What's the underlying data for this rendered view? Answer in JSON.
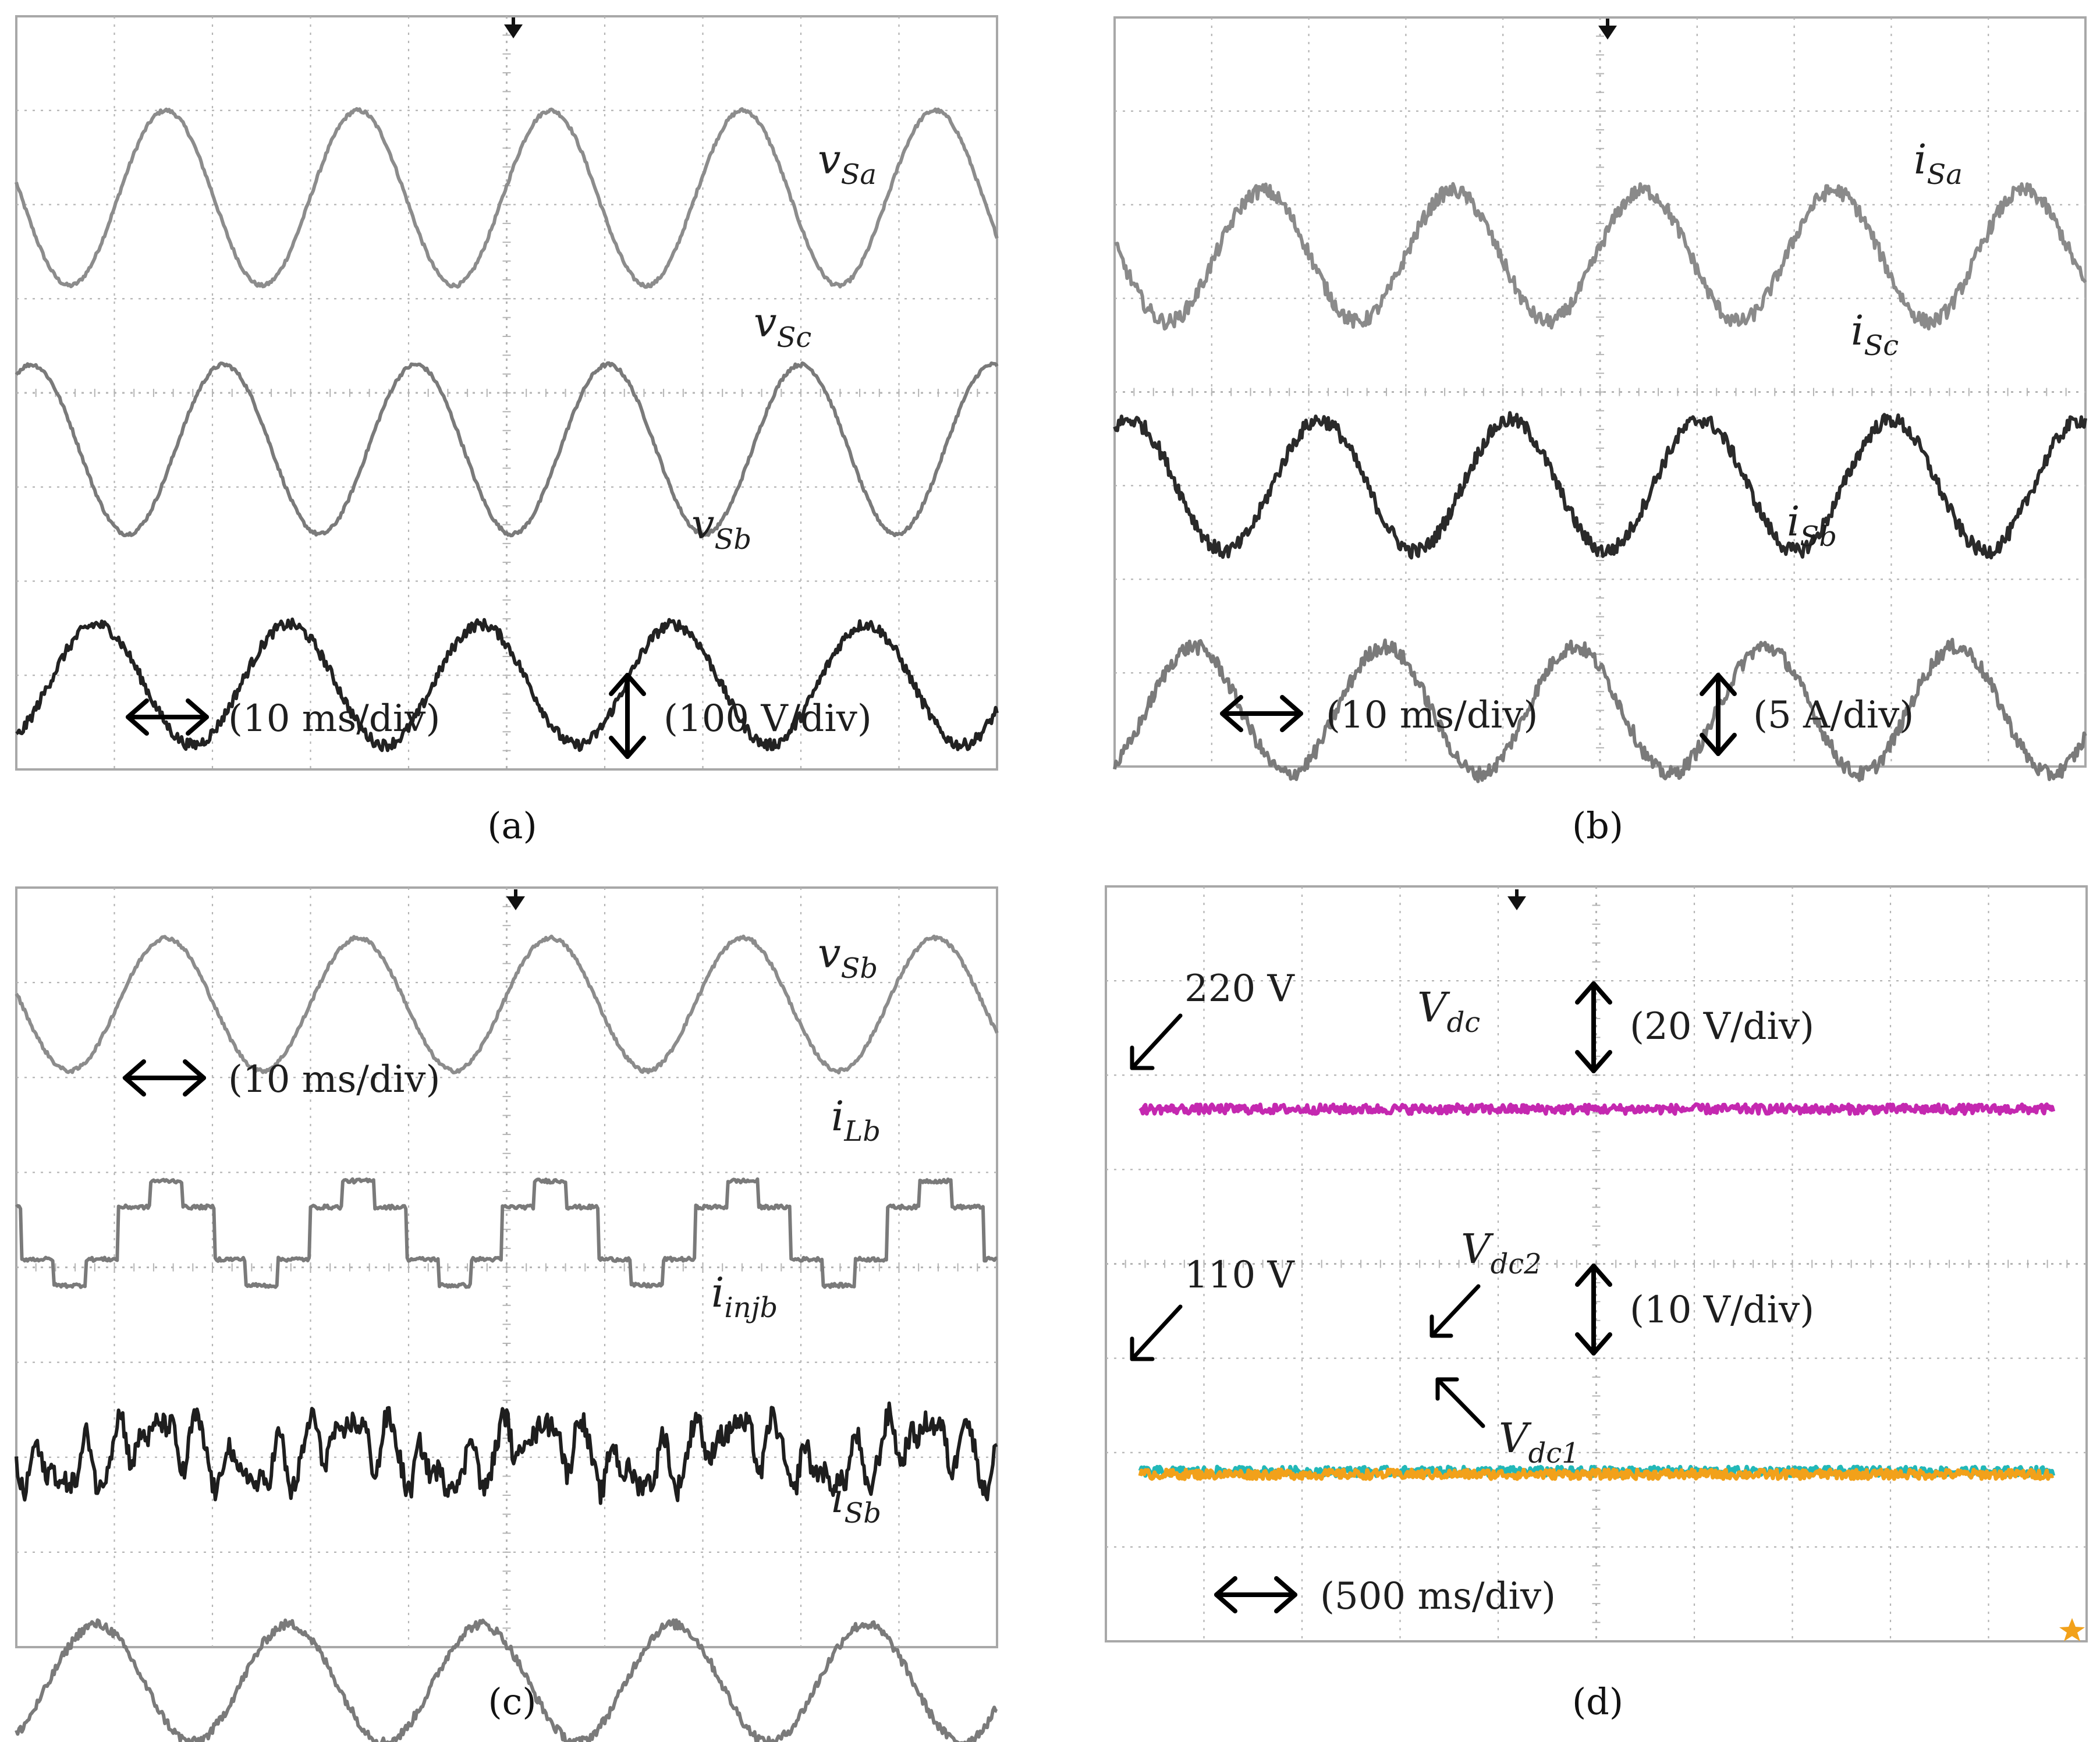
{
  "chart_data": [
    {
      "type": "line",
      "panel_label": "(a)",
      "grid": true,
      "annotations": {
        "time_scale": "(10 ms/div)",
        "amplitude_scale": "(100 V/div)"
      },
      "series": [
        {
          "name": "vSa",
          "label_main": "v",
          "label_sub": "Sa",
          "waveform": "sine",
          "color": "#8c8c8c",
          "noise": 0.02,
          "cycles": 5.1,
          "phase_deg": 170,
          "center_div": 1.93,
          "amplitude_div": 0.93
        },
        {
          "name": "vSc",
          "label_main": "v",
          "label_sub": "Sc",
          "waveform": "sine",
          "color": "#7a7a7a",
          "noise": 0.02,
          "cycles": 5.1,
          "phase_deg": 62,
          "center_div": 4.6,
          "amplitude_div": 0.9
        },
        {
          "name": "vSb",
          "label_main": "v",
          "label_sub": "Sb",
          "waveform": "sine",
          "color": "#222222",
          "noise": 0.06,
          "cycles": 5.1,
          "phase_deg": 300,
          "center_div": 7.1,
          "amplitude_div": 0.64
        }
      ]
    },
    {
      "type": "line",
      "panel_label": "(b)",
      "grid": true,
      "annotations": {
        "time_scale": "(10 ms/div)",
        "amplitude_scale": "(5 A/div)"
      },
      "series": [
        {
          "name": "iSa",
          "label_main": "i",
          "label_sub": "Sa",
          "waveform": "sine",
          "color": "#8a8a8a",
          "noise": 0.08,
          "cycles": 5.1,
          "phase_deg": 170,
          "center_div": 2.55,
          "amplitude_div": 0.7
        },
        {
          "name": "iSc",
          "label_main": "i",
          "label_sub": "Sc",
          "waveform": "sine",
          "color": "#2a2a2a",
          "noise": 0.08,
          "cycles": 5.1,
          "phase_deg": 62,
          "center_div": 5.0,
          "amplitude_div": 0.7
        },
        {
          "name": "iSb",
          "label_main": "i",
          "label_sub": "Sb",
          "waveform": "sine",
          "color": "#7a7a7a",
          "noise": 0.08,
          "cycles": 5.1,
          "phase_deg": 300,
          "center_div": 7.4,
          "amplitude_div": 0.68
        }
      ]
    },
    {
      "type": "line",
      "panel_label": "(c)",
      "grid": true,
      "annotations": {
        "time_scale": "(10 ms/div)"
      },
      "series": [
        {
          "name": "vSb",
          "label_main": "v",
          "label_sub": "Sb",
          "waveform": "sine",
          "color": "#8c8c8c",
          "noise": 0.02,
          "cycles": 5.1,
          "phase_deg": 170,
          "center_div": 1.23,
          "amplitude_div": 0.7
        },
        {
          "name": "iLb",
          "label_main": "i",
          "label_sub": "Lb",
          "waveform": "step",
          "color": "#7a7a7a",
          "noise": 0.02,
          "cycles": 5.1,
          "phase_deg": 170,
          "center_div": 3.64,
          "amplitude_div": 0.55
        },
        {
          "name": "iinjb",
          "label_main": "i",
          "label_sub": "injb",
          "waveform": "harmonic",
          "color": "#1e1e1e",
          "noise": 0.12,
          "cycles": 5.1,
          "phase_deg": 170,
          "center_div": 5.96,
          "amplitude_div": 0.5
        },
        {
          "name": "iSb",
          "label_main": "i",
          "label_sub": "Sb",
          "waveform": "sine",
          "color": "#7a7a7a",
          "noise": 0.05,
          "cycles": 5.1,
          "phase_deg": 300,
          "center_div": 8.38,
          "amplitude_div": 0.62
        }
      ]
    },
    {
      "type": "line",
      "panel_label": "(d)",
      "grid": true,
      "annotations": {
        "time_scale": "(500 ms/div)",
        "upper_scale": "(20 V/div)",
        "lower_scale": "(10 V/div)",
        "upper_level": "220 V",
        "lower_level": "110 V"
      },
      "series": [
        {
          "name": "Vdc",
          "label_main": "V",
          "label_sub": "dc",
          "waveform": "flat",
          "color": "#c428b0",
          "noise": 0.05,
          "center_div": 2.36,
          "x_start_div": 0.35,
          "x_end_div": 9.66
        },
        {
          "name": "Vdc2",
          "label_main": "V",
          "label_sub": "dc2",
          "waveform": "flat",
          "color": "#22b8b8",
          "noise": 0.05,
          "center_div": 6.2,
          "x_start_div": 0.35,
          "x_end_div": 9.66
        },
        {
          "name": "Vdc1",
          "label_main": "V",
          "label_sub": "dc1",
          "waveform": "flat",
          "color": "#f2a11a",
          "noise": 0.05,
          "center_div": 6.23,
          "x_start_div": 0.35,
          "x_end_div": 9.66
        }
      ]
    }
  ]
}
